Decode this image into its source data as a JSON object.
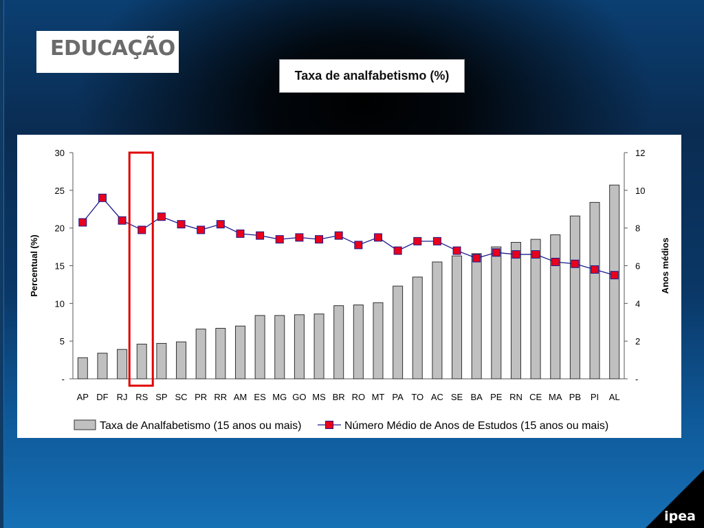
{
  "header": {
    "logo_text": "EDUCAÇÃO"
  },
  "title_box": {
    "text": "Taxa de analfabetismo (%)"
  },
  "brand": {
    "text": "ipea"
  },
  "colors": {
    "bar_fill": "#c0c0c0",
    "bar_stroke": "#303030",
    "line": "#1a1a8c",
    "marker": "#e8001c",
    "highlight": "#e00000"
  },
  "chart_data": {
    "type": "bar",
    "categories": [
      "AP",
      "DF",
      "RJ",
      "RS",
      "SP",
      "SC",
      "PR",
      "RR",
      "AM",
      "ES",
      "MG",
      "GO",
      "MS",
      "BR",
      "RO",
      "MT",
      "PA",
      "TO",
      "AC",
      "SE",
      "BA",
      "PE",
      "RN",
      "CE",
      "MA",
      "PB",
      "PI",
      "AL"
    ],
    "series": [
      {
        "name": "Taxa de Analfabetismo (15 anos ou mais)",
        "type": "bar",
        "axis": "left",
        "values": [
          2.8,
          3.4,
          3.9,
          4.6,
          4.7,
          4.9,
          6.6,
          6.7,
          7.0,
          8.4,
          8.4,
          8.5,
          8.6,
          9.7,
          9.8,
          10.1,
          12.3,
          13.5,
          15.5,
          16.3,
          16.6,
          17.5,
          18.1,
          18.5,
          19.1,
          21.6,
          23.4,
          25.7
        ]
      },
      {
        "name": "Número Médio de Anos de Estudos (15 anos ou mais)",
        "type": "line",
        "axis": "right",
        "values": [
          8.3,
          9.6,
          8.4,
          7.9,
          8.6,
          8.2,
          7.9,
          8.2,
          7.7,
          7.6,
          7.4,
          7.5,
          7.4,
          7.6,
          7.1,
          7.5,
          6.8,
          7.3,
          7.3,
          6.8,
          6.4,
          6.7,
          6.6,
          6.6,
          6.2,
          6.1,
          5.8,
          5.5
        ]
      }
    ],
    "left_axis": {
      "label": "Percentual (%)",
      "ylim": [
        0,
        30
      ],
      "ticks": [
        "-",
        "5",
        "10",
        "15",
        "20",
        "25",
        "30"
      ]
    },
    "right_axis": {
      "label": "Anos médios",
      "ylim": [
        0,
        12
      ],
      "ticks": [
        "-",
        "2",
        "4",
        "6",
        "8",
        "10",
        "12"
      ]
    },
    "highlight_category": "RS",
    "legend": {
      "placement": "bottom"
    },
    "grid": false
  }
}
